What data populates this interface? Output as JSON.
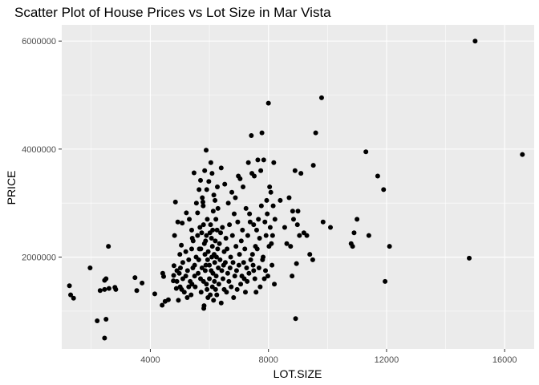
{
  "chart_data": {
    "type": "scatter",
    "title": "Scatter Plot of House Prices vs Lot Size in Mar Vista",
    "xlabel": "LOT.SIZE",
    "ylabel": "PRICE",
    "xlim": [
      1000,
      17000
    ],
    "ylim": [
      300000,
      6300000
    ],
    "x_ticks": [
      4000,
      8000,
      12000,
      16000
    ],
    "y_ticks": [
      2000000,
      4000000,
      6000000
    ],
    "x_tick_labels": [
      "4000",
      "8000",
      "12000",
      "16000"
    ],
    "y_tick_labels": [
      "2000000",
      "4000000",
      "6000000"
    ],
    "grid": true,
    "legend": "none",
    "colors": {
      "panel": "#EBEBEB",
      "grid": "#FFFFFF",
      "point": "#000000"
    },
    "points": [
      [
        1260,
        1470000
      ],
      [
        1300,
        1300000
      ],
      [
        1400,
        1240000
      ],
      [
        1960,
        1800000
      ],
      [
        2200,
        820000
      ],
      [
        2300,
        1380000
      ],
      [
        2450,
        1400000
      ],
      [
        2450,
        1570000
      ],
      [
        2500,
        1600000
      ],
      [
        2500,
        850000
      ],
      [
        2450,
        500000
      ],
      [
        2580,
        2200000
      ],
      [
        2600,
        1420000
      ],
      [
        2800,
        1440000
      ],
      [
        2830,
        1400000
      ],
      [
        3480,
        1620000
      ],
      [
        3540,
        1380000
      ],
      [
        3720,
        1520000
      ],
      [
        4150,
        1320000
      ],
      [
        4400,
        1110000
      ],
      [
        4420,
        1700000
      ],
      [
        4450,
        1640000
      ],
      [
        4500,
        1180000
      ],
      [
        4610,
        1210000
      ],
      [
        4780,
        1560000
      ],
      [
        4790,
        1660000
      ],
      [
        4800,
        1840000
      ],
      [
        4820,
        2400000
      ],
      [
        4850,
        3020000
      ],
      [
        4880,
        1420000
      ],
      [
        4900,
        1550000
      ],
      [
        4900,
        1750000
      ],
      [
        4930,
        2650000
      ],
      [
        4950,
        1200000
      ],
      [
        4980,
        1700000
      ],
      [
        5000,
        2050000
      ],
      [
        5010,
        1450000
      ],
      [
        5020,
        1800000
      ],
      [
        5050,
        2220000
      ],
      [
        5060,
        1400000
      ],
      [
        5080,
        2630000
      ],
      [
        5100,
        1600000
      ],
      [
        5100,
        1900000
      ],
      [
        5150,
        1350000
      ],
      [
        5200,
        1650000
      ],
      [
        5200,
        2100000
      ],
      [
        5220,
        2820000
      ],
      [
        5250,
        1250000
      ],
      [
        5260,
        1750000
      ],
      [
        5300,
        1450000
      ],
      [
        5300,
        1950000
      ],
      [
        5320,
        2700000
      ],
      [
        5350,
        1550000
      ],
      [
        5380,
        1300000
      ],
      [
        5400,
        2500000
      ],
      [
        5400,
        2150000
      ],
      [
        5410,
        1500000
      ],
      [
        5420,
        2350000
      ],
      [
        5440,
        1800000
      ],
      [
        5450,
        2300000
      ],
      [
        5480,
        3560000
      ],
      [
        5500,
        1650000
      ],
      [
        5500,
        1850000
      ],
      [
        5520,
        1450000
      ],
      [
        5550,
        2000000
      ],
      [
        5560,
        3000000
      ],
      [
        5600,
        2400000
      ],
      [
        5600,
        2820000
      ],
      [
        5620,
        1700000
      ],
      [
        5640,
        1950000
      ],
      [
        5650,
        3250000
      ],
      [
        5660,
        2150000
      ],
      [
        5680,
        2550000
      ],
      [
        5700,
        1600000
      ],
      [
        5700,
        3420000
      ],
      [
        5710,
        2150000
      ],
      [
        5720,
        1350000
      ],
      [
        5740,
        2450000
      ],
      [
        5750,
        1800000
      ],
      [
        5760,
        3100000
      ],
      [
        5780,
        3020000
      ],
      [
        5790,
        2950000
      ],
      [
        5800,
        1550000
      ],
      [
        5800,
        2600000
      ],
      [
        5810,
        1050000
      ],
      [
        5820,
        1100000
      ],
      [
        5830,
        2250000
      ],
      [
        5840,
        3600000
      ],
      [
        5850,
        2050000
      ],
      [
        5860,
        1750000
      ],
      [
        5870,
        2300000
      ],
      [
        5880,
        1850000
      ],
      [
        5890,
        3980000
      ],
      [
        5900,
        1500000
      ],
      [
        5900,
        2400000
      ],
      [
        5910,
        3250000
      ],
      [
        5920,
        1400000
      ],
      [
        5930,
        2700000
      ],
      [
        5940,
        1950000
      ],
      [
        5950,
        1250000
      ],
      [
        5960,
        2100000
      ],
      [
        5980,
        3400000
      ],
      [
        6000,
        1600000
      ],
      [
        6000,
        1850000
      ],
      [
        6020,
        2450000
      ],
      [
        6030,
        1300000
      ],
      [
        6040,
        2600000
      ],
      [
        6050,
        3750000
      ],
      [
        6060,
        1750000
      ],
      [
        6070,
        2350000
      ],
      [
        6080,
        2000000
      ],
      [
        6090,
        3550000
      ],
      [
        6100,
        1450000
      ],
      [
        6100,
        2200000
      ],
      [
        6110,
        2500000
      ],
      [
        6120,
        1700000
      ],
      [
        6130,
        2850000
      ],
      [
        6140,
        1200000
      ],
      [
        6150,
        3150000
      ],
      [
        6160,
        2050000
      ],
      [
        6170,
        1550000
      ],
      [
        6180,
        1900000
      ],
      [
        6190,
        3050000
      ],
      [
        6200,
        2300000
      ],
      [
        6210,
        1400000
      ],
      [
        6220,
        2700000
      ],
      [
        6230,
        1650000
      ],
      [
        6240,
        2000000
      ],
      [
        6250,
        1300000
      ],
      [
        6260,
        2500000
      ],
      [
        6270,
        3300000
      ],
      [
        6280,
        2150000
      ],
      [
        6290,
        2900000
      ],
      [
        6300,
        1800000
      ],
      [
        6320,
        1500000
      ],
      [
        6340,
        2250000
      ],
      [
        6360,
        1950000
      ],
      [
        6380,
        2450000
      ],
      [
        6400,
        1150000
      ],
      [
        6400,
        3650000
      ],
      [
        6420,
        1750000
      ],
      [
        6440,
        2550000
      ],
      [
        6460,
        1600000
      ],
      [
        6480,
        1850000
      ],
      [
        6500,
        2100000
      ],
      [
        6500,
        1400000
      ],
      [
        6520,
        3350000
      ],
      [
        6540,
        1900000
      ],
      [
        6560,
        2350000
      ],
      [
        6580,
        1350000
      ],
      [
        6600,
        2150000
      ],
      [
        6620,
        1700000
      ],
      [
        6640,
        3000000
      ],
      [
        6660,
        1550000
      ],
      [
        6680,
        2600000
      ],
      [
        6700,
        1800000
      ],
      [
        6720,
        2000000
      ],
      [
        6740,
        1450000
      ],
      [
        6760,
        3200000
      ],
      [
        6780,
        2400000
      ],
      [
        6800,
        1900000
      ],
      [
        6820,
        1250000
      ],
      [
        6840,
        2800000
      ],
      [
        6860,
        1650000
      ],
      [
        6880,
        3100000
      ],
      [
        6900,
        2200000
      ],
      [
        6920,
        1750000
      ],
      [
        6940,
        1400000
      ],
      [
        6960,
        2650000
      ],
      [
        6980,
        3500000
      ],
      [
        7000,
        1850000
      ],
      [
        7020,
        2050000
      ],
      [
        7040,
        3450000
      ],
      [
        7060,
        1500000
      ],
      [
        7080,
        2300000
      ],
      [
        7100,
        1650000
      ],
      [
        7120,
        2500000
      ],
      [
        7140,
        3300000
      ],
      [
        7160,
        1900000
      ],
      [
        7180,
        1600000
      ],
      [
        7200,
        2150000
      ],
      [
        7220,
        1350000
      ],
      [
        7240,
        2900000
      ],
      [
        7260,
        1800000
      ],
      [
        7280,
        1550000
      ],
      [
        7300,
        2400000
      ],
      [
        7320,
        3750000
      ],
      [
        7340,
        1700000
      ],
      [
        7360,
        2800000
      ],
      [
        7380,
        2650000
      ],
      [
        7400,
        1950000
      ],
      [
        7420,
        4250000
      ],
      [
        7440,
        3550000
      ],
      [
        7460,
        2050000
      ],
      [
        7480,
        1850000
      ],
      [
        7500,
        1750000
      ],
      [
        7500,
        2600000
      ],
      [
        7520,
        3500000
      ],
      [
        7540,
        1600000
      ],
      [
        7560,
        2200000
      ],
      [
        7580,
        1350000
      ],
      [
        7600,
        2500000
      ],
      [
        7620,
        2150000
      ],
      [
        7640,
        3800000
      ],
      [
        7660,
        2700000
      ],
      [
        7680,
        1800000
      ],
      [
        7700,
        2350000
      ],
      [
        7720,
        1450000
      ],
      [
        7740,
        3600000
      ],
      [
        7760,
        2950000
      ],
      [
        7780,
        4300000
      ],
      [
        7800,
        1950000
      ],
      [
        7820,
        2000000
      ],
      [
        7840,
        3800000
      ],
      [
        7860,
        1600000
      ],
      [
        7880,
        2650000
      ],
      [
        7900,
        1750000
      ],
      [
        7920,
        2400000
      ],
      [
        7940,
        3050000
      ],
      [
        7960,
        2800000
      ],
      [
        7980,
        1650000
      ],
      [
        8000,
        4850000
      ],
      [
        8020,
        2200000
      ],
      [
        8040,
        3300000
      ],
      [
        8060,
        2550000
      ],
      [
        8080,
        3200000
      ],
      [
        8100,
        2250000
      ],
      [
        8120,
        1850000
      ],
      [
        8140,
        2400000
      ],
      [
        8160,
        2950000
      ],
      [
        8180,
        3750000
      ],
      [
        8200,
        1500000
      ],
      [
        8220,
        2700000
      ],
      [
        8400,
        3050000
      ],
      [
        8550,
        2550000
      ],
      [
        8620,
        2250000
      ],
      [
        8700,
        3100000
      ],
      [
        8750,
        2200000
      ],
      [
        8800,
        1650000
      ],
      [
        8820,
        2850000
      ],
      [
        8850,
        2700000
      ],
      [
        8900,
        3600000
      ],
      [
        8920,
        860000
      ],
      [
        8950,
        1880000
      ],
      [
        8980,
        2600000
      ],
      [
        9000,
        2850000
      ],
      [
        9050,
        2400000
      ],
      [
        9100,
        3550000
      ],
      [
        9200,
        2450000
      ],
      [
        9300,
        2400000
      ],
      [
        9400,
        2050000
      ],
      [
        9500,
        1950000
      ],
      [
        9520,
        3700000
      ],
      [
        9600,
        4300000
      ],
      [
        9800,
        4950000
      ],
      [
        9850,
        2650000
      ],
      [
        10100,
        2550000
      ],
      [
        10800,
        2250000
      ],
      [
        10850,
        2200000
      ],
      [
        10900,
        2450000
      ],
      [
        11000,
        2700000
      ],
      [
        11300,
        3950000
      ],
      [
        11400,
        2400000
      ],
      [
        11700,
        3500000
      ],
      [
        11900,
        3250000
      ],
      [
        11950,
        1550000
      ],
      [
        12100,
        2200000
      ],
      [
        14800,
        1980000
      ],
      [
        15000,
        6000000
      ],
      [
        16600,
        3900000
      ]
    ]
  }
}
